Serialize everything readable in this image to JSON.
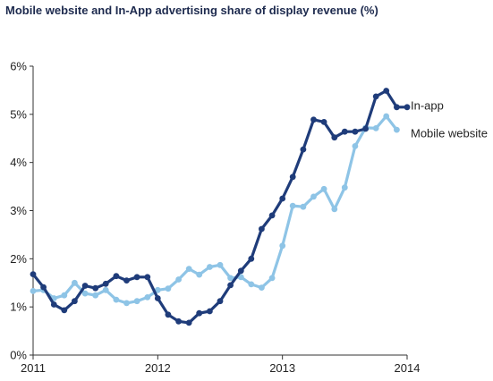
{
  "chart_data": {
    "type": "line",
    "title": "Mobile website and In-App advertising share of display revenue (%)",
    "xlabel": "",
    "ylabel": "",
    "x_ticks": [
      "2011",
      "2012",
      "2013",
      "2014"
    ],
    "y_ticks": [
      "0%",
      "1%",
      "2%",
      "3%",
      "4%",
      "5%",
      "6%"
    ],
    "xlim": [
      2011,
      2014
    ],
    "ylim": [
      0,
      6
    ],
    "grid": false,
    "legend": "inline labels at right end of lines",
    "series": [
      {
        "name": "In-app",
        "color": "#1f3c7a",
        "x": [
          2011.0,
          2011.083,
          2011.167,
          2011.25,
          2011.333,
          2011.417,
          2011.5,
          2011.583,
          2011.667,
          2011.75,
          2011.833,
          2011.917,
          2012.0,
          2012.083,
          2012.167,
          2012.25,
          2012.333,
          2012.417,
          2012.5,
          2012.583,
          2012.667,
          2012.75,
          2012.833,
          2012.917,
          2013.0,
          2013.083,
          2013.167,
          2013.25,
          2013.333,
          2013.417,
          2013.5,
          2013.583,
          2013.667,
          2013.75,
          2013.833,
          2013.917,
          2014.0
        ],
        "values": [
          1.68,
          1.41,
          1.05,
          0.93,
          1.12,
          1.44,
          1.39,
          1.48,
          1.64,
          1.55,
          1.62,
          1.62,
          1.18,
          0.84,
          0.7,
          0.67,
          0.87,
          0.91,
          1.12,
          1.45,
          1.75,
          2.0,
          2.62,
          2.9,
          3.25,
          3.7,
          4.27,
          4.89,
          4.84,
          4.52,
          4.64,
          4.64,
          4.7,
          5.37,
          5.49,
          5.15,
          5.15
        ]
      },
      {
        "name": "Mobile website",
        "color": "#8ec4e6",
        "x": [
          2011.0,
          2011.083,
          2011.167,
          2011.25,
          2011.333,
          2011.417,
          2011.5,
          2011.583,
          2011.667,
          2011.75,
          2011.833,
          2011.917,
          2012.0,
          2012.083,
          2012.167,
          2012.25,
          2012.333,
          2012.417,
          2012.5,
          2012.583,
          2012.667,
          2012.75,
          2012.833,
          2012.917,
          2013.0,
          2013.083,
          2013.167,
          2013.25,
          2013.333,
          2013.417,
          2013.5,
          2013.583,
          2013.667,
          2013.75,
          2013.833,
          2013.917
        ],
        "values": [
          1.33,
          1.35,
          1.18,
          1.24,
          1.5,
          1.28,
          1.24,
          1.35,
          1.15,
          1.08,
          1.12,
          1.2,
          1.35,
          1.38,
          1.57,
          1.79,
          1.67,
          1.83,
          1.87,
          1.6,
          1.62,
          1.47,
          1.4,
          1.6,
          2.27,
          3.1,
          3.08,
          3.29,
          3.45,
          3.03,
          3.48,
          4.34,
          4.72,
          4.71,
          4.96,
          4.68
        ]
      }
    ]
  }
}
